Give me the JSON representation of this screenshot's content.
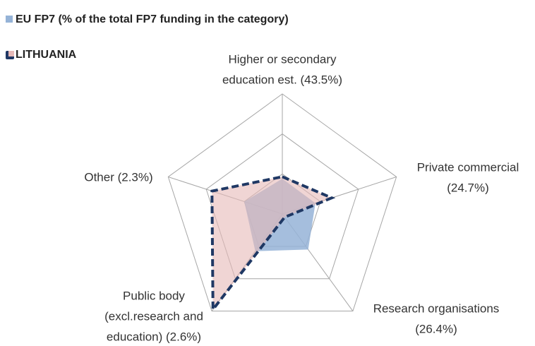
{
  "chart_data": {
    "type": "radar",
    "categories": [
      [
        "Higher or secondary",
        "education est. (43.5%)"
      ],
      [
        "Private commercial",
        "(24.7%)"
      ],
      [
        "Research organisations",
        "(26.4%)"
      ],
      [
        "Public body",
        "(excl.research and",
        "education) (2.6%)"
      ],
      [
        "Other (2.3%)"
      ]
    ],
    "series": [
      {
        "name": "EU FP7 (% of the total FP7 funding in the category)",
        "color": "#95b3d7",
        "values": [
          0.88,
          0.87,
          1.1,
          1.15,
          1.0
        ]
      },
      {
        "name": "LITHUANIA",
        "color": "#e6b9b8",
        "line_color": "#1f3864",
        "line_style": "dashed",
        "values": [
          0.93,
          1.3,
          0.1,
          2.95,
          1.85
        ]
      }
    ],
    "ylim": [
      0,
      3
    ],
    "yticks": [
      1,
      2,
      3
    ],
    "grid": true,
    "show_tick_labels": false
  }
}
